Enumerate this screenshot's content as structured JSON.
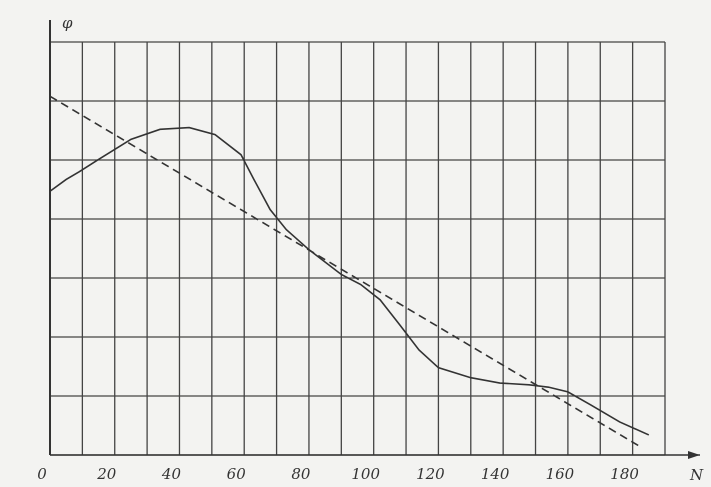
{
  "chart_data": {
    "type": "line",
    "x_label": "N",
    "y_label": "φ",
    "xlim": [
      0,
      190
    ],
    "ylim": [
      0,
      7
    ],
    "xticks": [
      0,
      20,
      40,
      60,
      80,
      100,
      120,
      140,
      160,
      180
    ],
    "xgrid_minor": [
      10,
      30,
      50,
      70,
      90,
      110,
      130,
      150,
      170
    ],
    "yticks": [
      0,
      1,
      2,
      3,
      4,
      5,
      6,
      7
    ],
    "ytick_labels": false,
    "grid": true,
    "series": [
      {
        "color": "#333333",
        "dashed": false,
        "x": [
          0,
          5,
          9,
          15,
          25,
          34,
          43,
          51,
          59,
          63,
          68,
          73,
          80,
          90,
          96,
          102,
          108,
          114,
          120,
          130,
          139,
          148,
          154,
          160,
          167,
          176,
          185
        ],
        "values": [
          4.47,
          4.67,
          4.8,
          5.01,
          5.35,
          5.52,
          5.55,
          5.43,
          5.09,
          4.67,
          4.16,
          3.82,
          3.48,
          3.06,
          2.89,
          2.63,
          2.21,
          1.78,
          1.48,
          1.31,
          1.22,
          1.19,
          1.15,
          1.07,
          0.85,
          0.56,
          0.34
        ]
      },
      {
        "color": "#333333",
        "dashed": true,
        "x": [
          0,
          183
        ],
        "values": [
          6.08,
          0.12
        ]
      }
    ]
  }
}
